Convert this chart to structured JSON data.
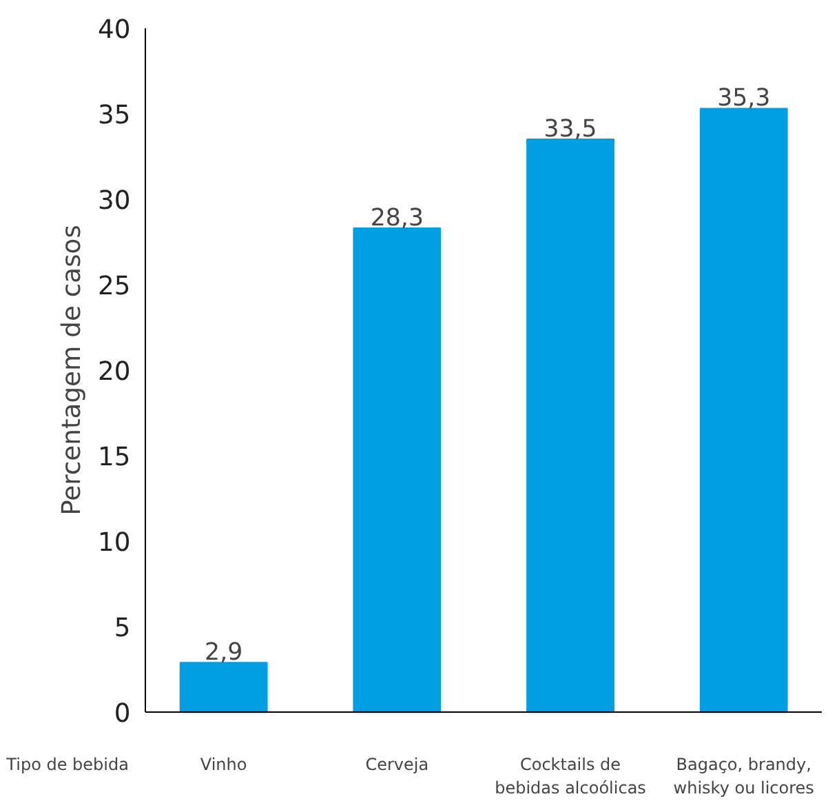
{
  "chart_data": {
    "type": "bar",
    "ylabel": "Percentagem de casos",
    "xlabel": "Tipo de bebida",
    "categories": [
      "Vinho",
      "Cerveja",
      "Cocktails de bebidas alcoólicas",
      "Bagaço, brandy, whisky ou licores"
    ],
    "values": [
      2.9,
      28.3,
      33.5,
      35.3
    ],
    "value_labels": [
      "2,9",
      "28,3",
      "33,5",
      "35,3"
    ],
    "color": "#009fe3",
    "ylim": [
      0,
      40
    ],
    "yticks": [
      0,
      5,
      10,
      15,
      20,
      25,
      30,
      35,
      40
    ],
    "grid": false
  }
}
